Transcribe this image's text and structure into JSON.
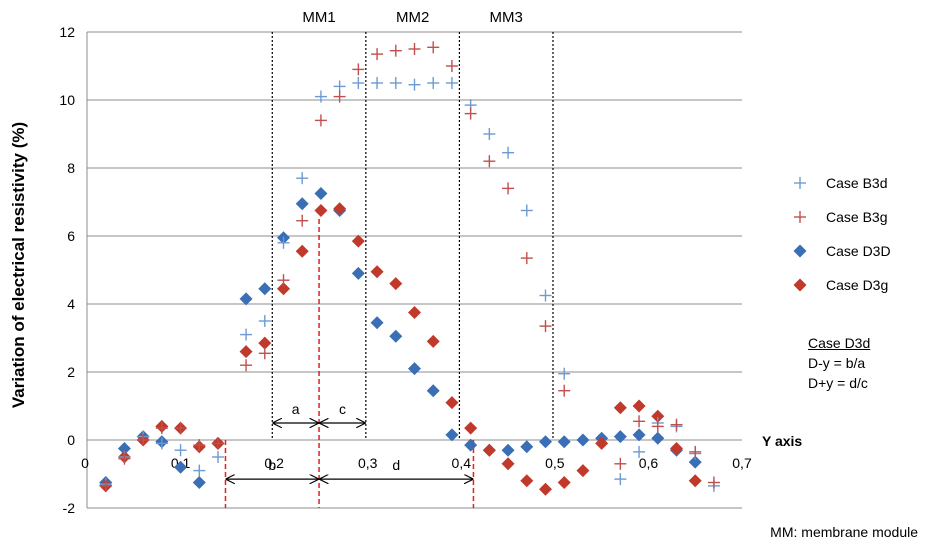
{
  "chart_data": {
    "type": "scatter",
    "ylabel": "Variation of electrical resistivity (%)",
    "xlabel": "Y axis",
    "xlim": [
      0,
      0.7
    ],
    "ylim": [
      -2,
      12
    ],
    "x_ticks": [
      "0",
      "0,1",
      "0,2",
      "0,3",
      "0,4",
      "0,5",
      "0,6",
      "0,7"
    ],
    "x_tick_values": [
      0,
      0.1,
      0.2,
      0.3,
      0.4,
      0.5,
      0.6,
      0.7
    ],
    "y_ticks": [
      "-2",
      "0",
      "2",
      "4",
      "6",
      "8",
      "10",
      "12"
    ],
    "y_tick_values": [
      -2,
      0,
      2,
      4,
      6,
      8,
      10,
      12
    ],
    "grid": "horizontal",
    "legend_position": "right",
    "series": [
      {
        "name": "Case B3d",
        "marker": "plus",
        "color": "#6b9bd2",
        "points": [
          [
            0.02,
            -1.3
          ],
          [
            0.04,
            -0.5
          ],
          [
            0.06,
            0.1
          ],
          [
            0.08,
            -0.1
          ],
          [
            0.1,
            -0.3
          ],
          [
            0.12,
            -0.9
          ],
          [
            0.14,
            -0.5
          ],
          [
            0.17,
            3.1
          ],
          [
            0.19,
            3.5
          ],
          [
            0.21,
            5.8
          ],
          [
            0.23,
            7.7
          ],
          [
            0.25,
            10.1
          ],
          [
            0.27,
            10.4
          ],
          [
            0.29,
            10.5
          ],
          [
            0.31,
            10.5
          ],
          [
            0.33,
            10.5
          ],
          [
            0.35,
            10.45
          ],
          [
            0.37,
            10.5
          ],
          [
            0.39,
            10.5
          ],
          [
            0.41,
            9.85
          ],
          [
            0.43,
            9.0
          ],
          [
            0.45,
            8.45
          ],
          [
            0.47,
            6.75
          ],
          [
            0.49,
            4.25
          ],
          [
            0.51,
            1.95
          ],
          [
            0.57,
            -1.15
          ],
          [
            0.59,
            -0.35
          ],
          [
            0.61,
            0.5
          ],
          [
            0.63,
            0.4
          ],
          [
            0.65,
            -0.4
          ],
          [
            0.67,
            -1.35
          ]
        ]
      },
      {
        "name": "Case B3g",
        "marker": "plus",
        "color": "#c0504d",
        "points": [
          [
            0.02,
            -1.35
          ],
          [
            0.04,
            -0.55
          ],
          [
            0.06,
            0.0
          ],
          [
            0.08,
            0.35
          ],
          [
            0.1,
            0.35
          ],
          [
            0.12,
            -0.15
          ],
          [
            0.14,
            -0.1
          ],
          [
            0.17,
            2.2
          ],
          [
            0.19,
            2.55
          ],
          [
            0.21,
            4.7
          ],
          [
            0.23,
            6.45
          ],
          [
            0.25,
            9.4
          ],
          [
            0.27,
            10.1
          ],
          [
            0.29,
            10.9
          ],
          [
            0.31,
            11.35
          ],
          [
            0.33,
            11.45
          ],
          [
            0.35,
            11.5
          ],
          [
            0.37,
            11.55
          ],
          [
            0.39,
            11.0
          ],
          [
            0.41,
            9.6
          ],
          [
            0.43,
            8.2
          ],
          [
            0.45,
            7.4
          ],
          [
            0.47,
            5.35
          ],
          [
            0.49,
            3.35
          ],
          [
            0.51,
            1.45
          ],
          [
            0.57,
            -0.7
          ],
          [
            0.59,
            0.55
          ],
          [
            0.61,
            0.4
          ],
          [
            0.63,
            0.45
          ],
          [
            0.65,
            -0.35
          ],
          [
            0.67,
            -1.25
          ]
        ]
      },
      {
        "name": "Case D3D",
        "marker": "diamond",
        "color": "#3a6fb5",
        "points": [
          [
            0.02,
            -1.25
          ],
          [
            0.04,
            -0.25
          ],
          [
            0.06,
            0.1
          ],
          [
            0.08,
            -0.05
          ],
          [
            0.1,
            -0.8
          ],
          [
            0.12,
            -1.25
          ],
          [
            0.14,
            -0.1
          ],
          [
            0.17,
            4.15
          ],
          [
            0.19,
            4.45
          ],
          [
            0.21,
            5.95
          ],
          [
            0.23,
            6.95
          ],
          [
            0.25,
            7.25
          ],
          [
            0.27,
            6.75
          ],
          [
            0.29,
            4.9
          ],
          [
            0.31,
            3.45
          ],
          [
            0.33,
            3.05
          ],
          [
            0.35,
            2.1
          ],
          [
            0.37,
            1.45
          ],
          [
            0.39,
            0.15
          ],
          [
            0.41,
            -0.15
          ],
          [
            0.43,
            -0.3
          ],
          [
            0.45,
            -0.3
          ],
          [
            0.47,
            -0.2
          ],
          [
            0.49,
            -0.05
          ],
          [
            0.51,
            -0.05
          ],
          [
            0.53,
            0.0
          ],
          [
            0.55,
            0.05
          ],
          [
            0.57,
            0.1
          ],
          [
            0.59,
            0.15
          ],
          [
            0.61,
            0.05
          ],
          [
            0.63,
            -0.3
          ],
          [
            0.65,
            -0.65
          ]
        ]
      },
      {
        "name": "Case D3g",
        "marker": "diamond",
        "color": "#c0392b",
        "points": [
          [
            0.02,
            -1.35
          ],
          [
            0.04,
            -0.5
          ],
          [
            0.06,
            0.0
          ],
          [
            0.08,
            0.4
          ],
          [
            0.1,
            0.35
          ],
          [
            0.12,
            -0.2
          ],
          [
            0.14,
            -0.1
          ],
          [
            0.17,
            2.6
          ],
          [
            0.19,
            2.85
          ],
          [
            0.21,
            4.45
          ],
          [
            0.23,
            5.55
          ],
          [
            0.25,
            6.75
          ],
          [
            0.27,
            6.8
          ],
          [
            0.29,
            5.85
          ],
          [
            0.31,
            4.95
          ],
          [
            0.33,
            4.6
          ],
          [
            0.35,
            3.75
          ],
          [
            0.37,
            2.9
          ],
          [
            0.39,
            1.1
          ],
          [
            0.41,
            0.35
          ],
          [
            0.43,
            -0.3
          ],
          [
            0.45,
            -0.7
          ],
          [
            0.47,
            -1.2
          ],
          [
            0.49,
            -1.45
          ],
          [
            0.51,
            -1.25
          ],
          [
            0.53,
            -0.9
          ],
          [
            0.55,
            -0.1
          ],
          [
            0.57,
            0.95
          ],
          [
            0.59,
            1.0
          ],
          [
            0.61,
            0.7
          ],
          [
            0.63,
            -0.25
          ],
          [
            0.65,
            -1.2
          ]
        ]
      }
    ],
    "module_labels": [
      {
        "text": "MM1",
        "x_center": 0.248
      },
      {
        "text": "MM2",
        "x_center": 0.348
      },
      {
        "text": "MM3",
        "x_center": 0.448
      }
    ],
    "module_boundaries_x": [
      0.198,
      0.298,
      0.398,
      0.498
    ],
    "red_dashed_x": [
      0.148,
      0.248,
      0.413
    ],
    "dimension_arrows": [
      {
        "label": "a",
        "from": 0.198,
        "to": 0.248,
        "y": 0.5
      },
      {
        "label": "c",
        "from": 0.248,
        "to": 0.298,
        "y": 0.5
      },
      {
        "label": "b",
        "from": 0.148,
        "to": 0.248,
        "y": -1.15
      },
      {
        "label": "d",
        "from": 0.248,
        "to": 0.413,
        "y": -1.15
      }
    ]
  },
  "formula_box": {
    "title": "Case D3d",
    "line1": "D-y = b/a",
    "line2": "D+y = d/c"
  },
  "footnote": "MM: membrane module"
}
